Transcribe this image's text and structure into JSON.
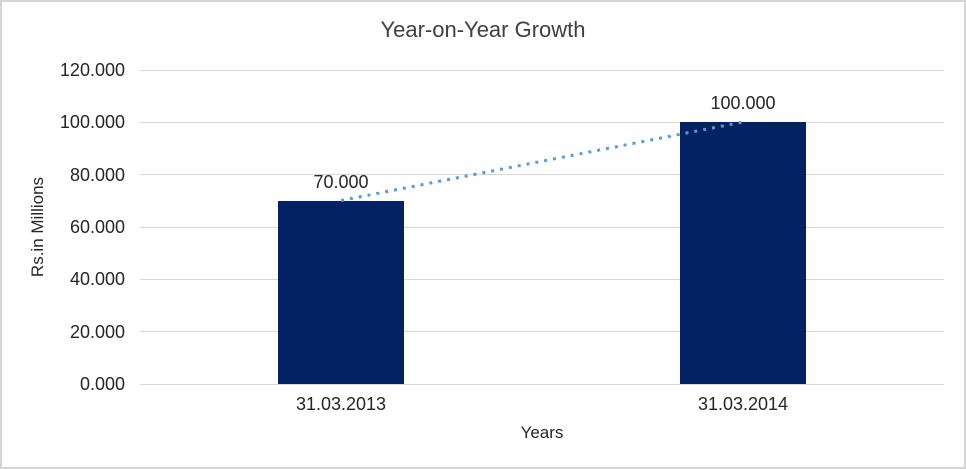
{
  "frame": {
    "background": "#FFFFFF",
    "border_color": "#D4D4D4"
  },
  "chart_data": {
    "type": "bar",
    "title": "Year-on-Year Growth",
    "xlabel": "Years",
    "ylabel": "Rs.in Millions",
    "categories": [
      "31.03.2013",
      "31.03.2014"
    ],
    "values": [
      70,
      100
    ],
    "data_labels": [
      "70.000",
      "100.000"
    ],
    "ylim": [
      0,
      120
    ],
    "ytick_step": 20,
    "ytick_labels": [
      "0.000",
      "20.000",
      "40.000",
      "60.000",
      "80.000",
      "100.000",
      "120.000"
    ],
    "grid": true,
    "legend": false,
    "trendline": {
      "type": "linear",
      "style": "dotted",
      "connects_values": [
        70,
        100
      ]
    },
    "colors": {
      "bar": "#032264",
      "trend": "#5B9BD5",
      "gridline": "#D6D6D6",
      "axis_text": "#262626",
      "title_text": "#404040"
    }
  }
}
